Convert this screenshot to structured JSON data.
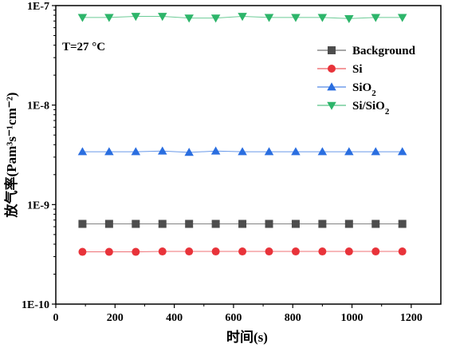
{
  "chart_data": {
    "type": "scatter",
    "title": "",
    "xlabel": "时间(s)",
    "ylabel": "放气率(Pam³s⁻¹cm⁻²)",
    "xlim": [
      0,
      1300
    ],
    "ylim": [
      1e-10,
      1e-07
    ],
    "yscale": "log",
    "xticks": [
      0,
      200,
      400,
      600,
      800,
      1000,
      1200
    ],
    "xtick_labels": [
      "0",
      "200",
      "400",
      "600",
      "800",
      "1000",
      "1200"
    ],
    "yticks": [
      1e-10,
      1e-09,
      1e-08,
      1e-07
    ],
    "ytick_labels": [
      "1E-10",
      "1E-9",
      "1E-8",
      "1E-7"
    ],
    "annotation": "T=27 °C",
    "legend_position": "top-right",
    "grid": false,
    "x": [
      90,
      180,
      270,
      360,
      450,
      540,
      630,
      720,
      810,
      900,
      990,
      1080,
      1170
    ],
    "series": [
      {
        "name": "Background",
        "marker": "square",
        "color": "#4d4d4d",
        "values": [
          6.4e-10,
          6.4e-10,
          6.4e-10,
          6.4e-10,
          6.4e-10,
          6.4e-10,
          6.4e-10,
          6.4e-10,
          6.4e-10,
          6.4e-10,
          6.4e-10,
          6.4e-10,
          6.4e-10
        ]
      },
      {
        "name": "Si",
        "marker": "circle",
        "color": "#e8333a",
        "values": [
          3.35e-10,
          3.35e-10,
          3.35e-10,
          3.38e-10,
          3.38e-10,
          3.38e-10,
          3.38e-10,
          3.38e-10,
          3.38e-10,
          3.38e-10,
          3.38e-10,
          3.38e-10,
          3.38e-10
        ]
      },
      {
        "name": "SiO2",
        "marker": "triangle-up",
        "color": "#2a6ee0",
        "values": [
          3.4e-09,
          3.4e-09,
          3.4e-09,
          3.45e-09,
          3.35e-09,
          3.45e-09,
          3.4e-09,
          3.4e-09,
          3.4e-09,
          3.4e-09,
          3.4e-09,
          3.4e-09,
          3.4e-09
        ]
      },
      {
        "name": "Si/SiO2",
        "marker": "triangle-down",
        "color": "#2db56a",
        "values": [
          7.6e-08,
          7.6e-08,
          7.8e-08,
          7.8e-08,
          7.5e-08,
          7.5e-08,
          7.8e-08,
          7.6e-08,
          7.6e-08,
          7.6e-08,
          7.4e-08,
          7.6e-08,
          7.6e-08
        ]
      }
    ]
  }
}
